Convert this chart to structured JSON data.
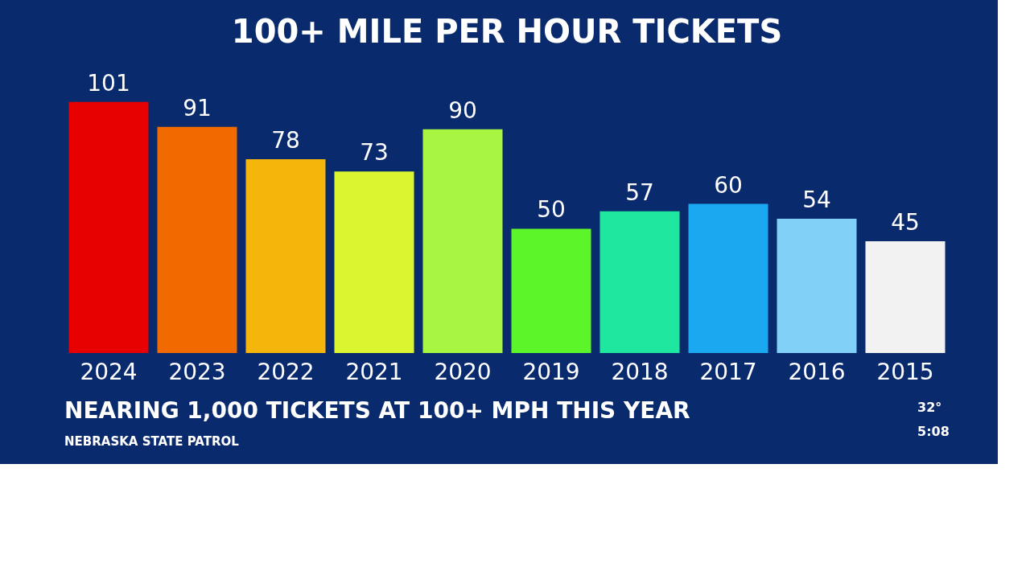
{
  "chart_data": {
    "type": "bar",
    "title": "100+ MILE PER HOUR TICKETS",
    "categories": [
      "2024",
      "2023",
      "2022",
      "2021",
      "2020",
      "2019",
      "2018",
      "2017",
      "2016",
      "2015"
    ],
    "values": [
      101,
      91,
      78,
      73,
      90,
      50,
      57,
      60,
      54,
      45
    ],
    "colors": [
      "#e60000",
      "#f06a00",
      "#f5b50a",
      "#dcf531",
      "#a8f542",
      "#5cf52a",
      "#1ee8a0",
      "#1aa8f0",
      "#80d0f8",
      "#f2f2f2"
    ],
    "data_labels": true,
    "grid": false,
    "annotations": [
      "NEARING 1,000 TICKETS AT 100+ MPH THIS YEAR",
      "NEBRASKA STATE PATROL",
      "32°",
      "5:08"
    ]
  }
}
